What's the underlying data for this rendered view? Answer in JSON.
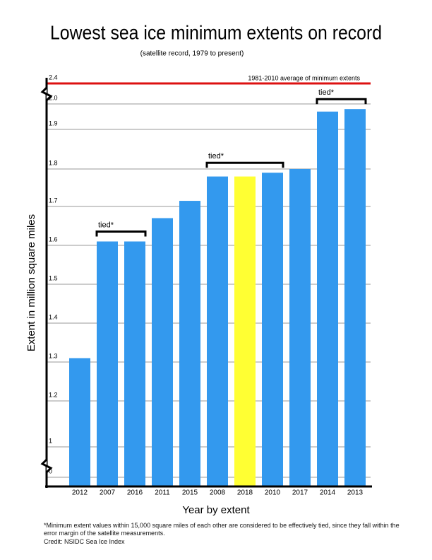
{
  "chart_data": {
    "type": "bar",
    "title": "Lowest sea ice minimum extents on record",
    "subtitle": "(satellite record, 1979 to present)",
    "x_label": "Year by extent",
    "y_label": "Extent in million square miles",
    "categories": [
      "2012",
      "2007",
      "2016",
      "2011",
      "2015",
      "2008",
      "2018",
      "2010",
      "2017",
      "2014",
      "2013"
    ],
    "values": [
      1.31,
      1.61,
      1.61,
      1.67,
      1.715,
      1.78,
      1.78,
      1.79,
      1.8,
      1.97,
      1.98
    ],
    "colors": [
      "#3399ee",
      "#3399ee",
      "#3399ee",
      "#3399ee",
      "#3399ee",
      "#3399ee",
      "#ffff33",
      "#3399ee",
      "#3399ee",
      "#3399ee",
      "#3399ee"
    ],
    "ylim": [
      0,
      2.4
    ],
    "yticks": [
      0,
      1,
      1.2,
      1.3,
      1.4,
      1.5,
      1.6,
      1.7,
      1.8,
      1.9,
      {
        "value": 2.0,
        "label": "2.0"
      },
      2.4
    ],
    "grid": true,
    "reference_line": {
      "value": 2.4,
      "label": "1981-2010 average of minimum extents",
      "color": "#dd1111"
    },
    "annotations": [
      {
        "text": "tied*",
        "categories": [
          "2007",
          "2016"
        ]
      },
      {
        "text": "tied*",
        "categories": [
          "2008",
          "2010"
        ]
      },
      {
        "text": "tied*",
        "categories": [
          "2014",
          "2013"
        ]
      }
    ],
    "footnote": "*Minimum extent values within 15,000 square miles of each other are considered to be effectively tied, since they fall within the error margin of the satellite measurements.",
    "credit": "Credit: NSIDC Sea Ice Index"
  }
}
